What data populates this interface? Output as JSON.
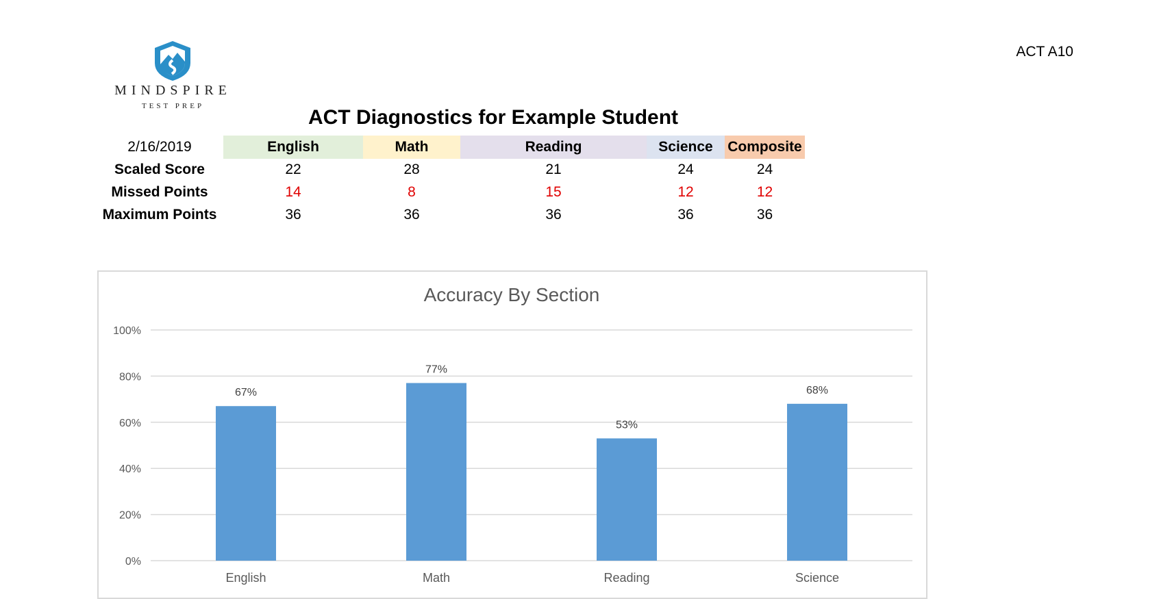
{
  "logo": {
    "name": "MINDSPIRE",
    "tagline": "TEST PREP",
    "color": "#2a8fc8"
  },
  "doc_code": "ACT A10",
  "report_title": "ACT Diagnostics for Example Student",
  "table": {
    "date": "2/16/2019",
    "headers": [
      {
        "label": "English",
        "bg": "#e2efda"
      },
      {
        "label": "Math",
        "bg": "#fff2cc"
      },
      {
        "label": "Reading",
        "bg": "#e4dfec"
      },
      {
        "label": "Science",
        "bg": "#dce3f0"
      },
      {
        "label": "Composite",
        "bg": "#f8cbad"
      }
    ],
    "rows": [
      {
        "label": "Scaled Score",
        "values": [
          "22",
          "28",
          "21",
          "24",
          "24"
        ]
      },
      {
        "label": "Missed Points",
        "values": [
          "14",
          "8",
          "15",
          "12",
          "12"
        ]
      },
      {
        "label": "Maximum Points",
        "values": [
          "36",
          "36",
          "36",
          "36",
          "36"
        ]
      }
    ]
  },
  "chart_data": {
    "type": "bar",
    "title": "Accuracy By Section",
    "categories": [
      "English",
      "Math",
      "Reading",
      "Science"
    ],
    "values": [
      67,
      77,
      53,
      68
    ],
    "value_labels": [
      "67%",
      "77%",
      "53%",
      "68%"
    ],
    "ylim": [
      0,
      100
    ],
    "y_ticks": [
      "0%",
      "20%",
      "40%",
      "60%",
      "80%",
      "100%"
    ],
    "grid": true,
    "bar_color": "#5b9bd5"
  }
}
